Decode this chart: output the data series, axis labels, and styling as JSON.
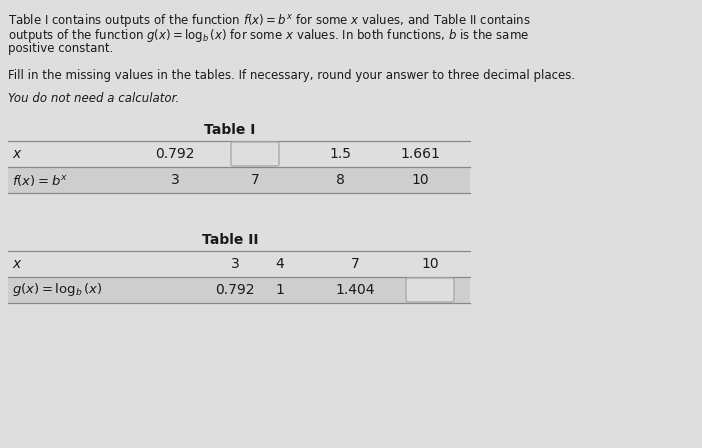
{
  "bg_color": "#dedede",
  "text_color": "#1a1a1a",
  "line_color": "#888888",
  "table_bg": "#cecece",
  "box_edge": "#aaaaaa",
  "header_lines": [
    "Table I contains outputs of the function $f(x) = b^x$ for some $x$ values, and Table II contains",
    "outputs of the function $g(x) = \\log_b(x)$ for some $x$ values. In both functions, $b$ is the same",
    "positive constant."
  ],
  "instr1": "Fill in the missing values in the tables. If necessary, round your answer to three decimal places.",
  "instr2": "You do not need a calculator.",
  "t1_title": "Table I",
  "t1_r1_label": "$x$",
  "t1_r1_vals": [
    "0.792",
    "",
    "1.5",
    "1.661"
  ],
  "t1_r2_label": "$f(x) = b^x$",
  "t1_r2_vals": [
    "3",
    "7",
    "8",
    "10"
  ],
  "t2_title": "Table II",
  "t2_r1_label": "$x$",
  "t2_r1_vals": [
    "3",
    "4",
    "7",
    "10"
  ],
  "t2_r2_label": "$g(x) = \\log_b(x)$",
  "t2_r2_vals": [
    "0.792",
    "1",
    "1.404",
    ""
  ],
  "figw": 7.02,
  "figh": 4.48,
  "dpi": 100
}
